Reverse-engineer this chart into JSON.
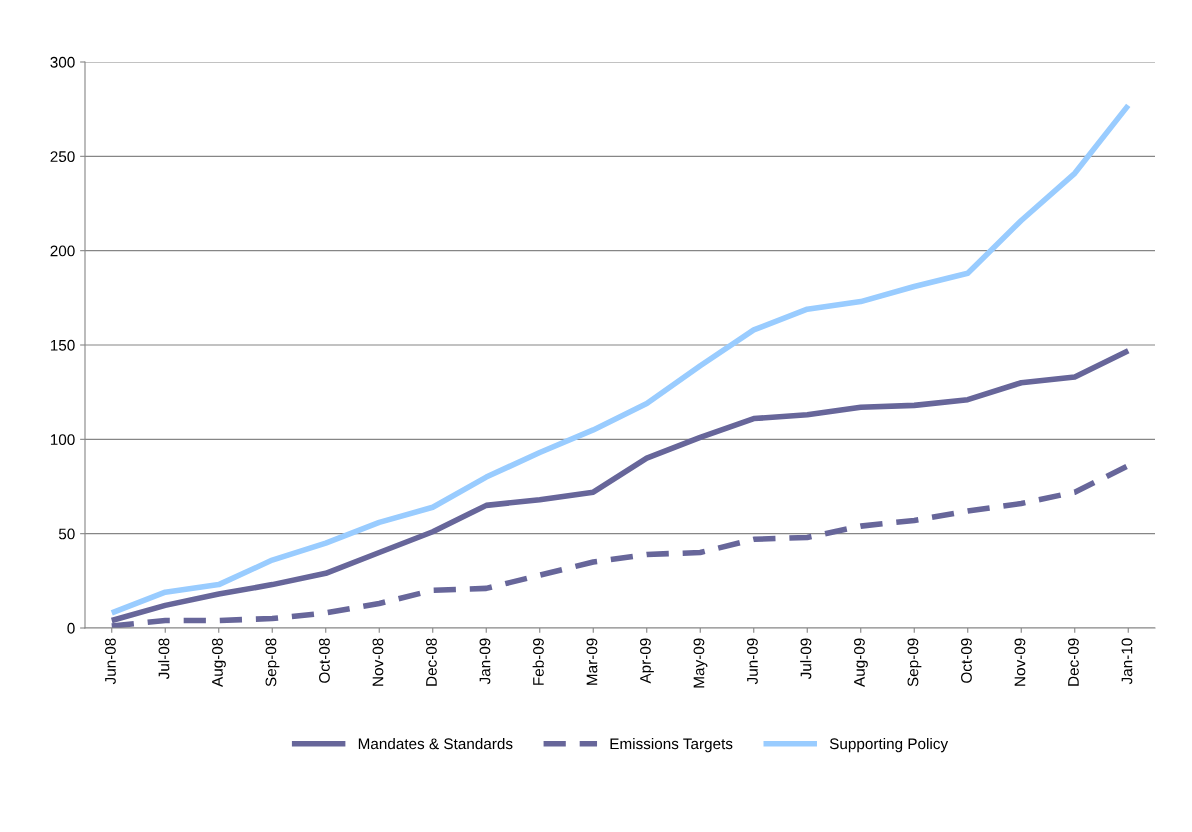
{
  "chart_data": {
    "type": "line",
    "categories": [
      "Jun-08",
      "Jul-08",
      "Aug-08",
      "Sep-08",
      "Oct-08",
      "Nov-08",
      "Dec-08",
      "Jan-09",
      "Feb-09",
      "Mar-09",
      "Apr-09",
      "May-09",
      "Jun-09",
      "Jul-09",
      "Aug-09",
      "Sep-09",
      "Oct-09",
      "Nov-09",
      "Dec-09",
      "Jan-10"
    ],
    "series": [
      {
        "name": "Mandates & Standards",
        "color": "#67669a",
        "line_style": "solid",
        "values": [
          4,
          12,
          18,
          23,
          29,
          40,
          51,
          65,
          68,
          72,
          90,
          101,
          111,
          113,
          117,
          118,
          121,
          130,
          133,
          147
        ]
      },
      {
        "name": "Emissions Targets",
        "color": "#67669a",
        "line_style": "dashed",
        "values": [
          1,
          4,
          4,
          5,
          8,
          13,
          20,
          21,
          28,
          35,
          39,
          40,
          47,
          48,
          54,
          57,
          62,
          66,
          72,
          86
        ]
      },
      {
        "name": "Supporting Policy",
        "color": "#99ccff",
        "line_style": "solid",
        "values": [
          8,
          19,
          23,
          36,
          45,
          56,
          64,
          80,
          93,
          105,
          119,
          139,
          158,
          169,
          173,
          181,
          188,
          216,
          241,
          277
        ]
      }
    ],
    "ylim": [
      0,
      300
    ],
    "yticks": [
      0,
      50,
      100,
      150,
      200,
      250,
      300
    ],
    "grid": "y",
    "legend": "bottom",
    "marker": "none"
  }
}
